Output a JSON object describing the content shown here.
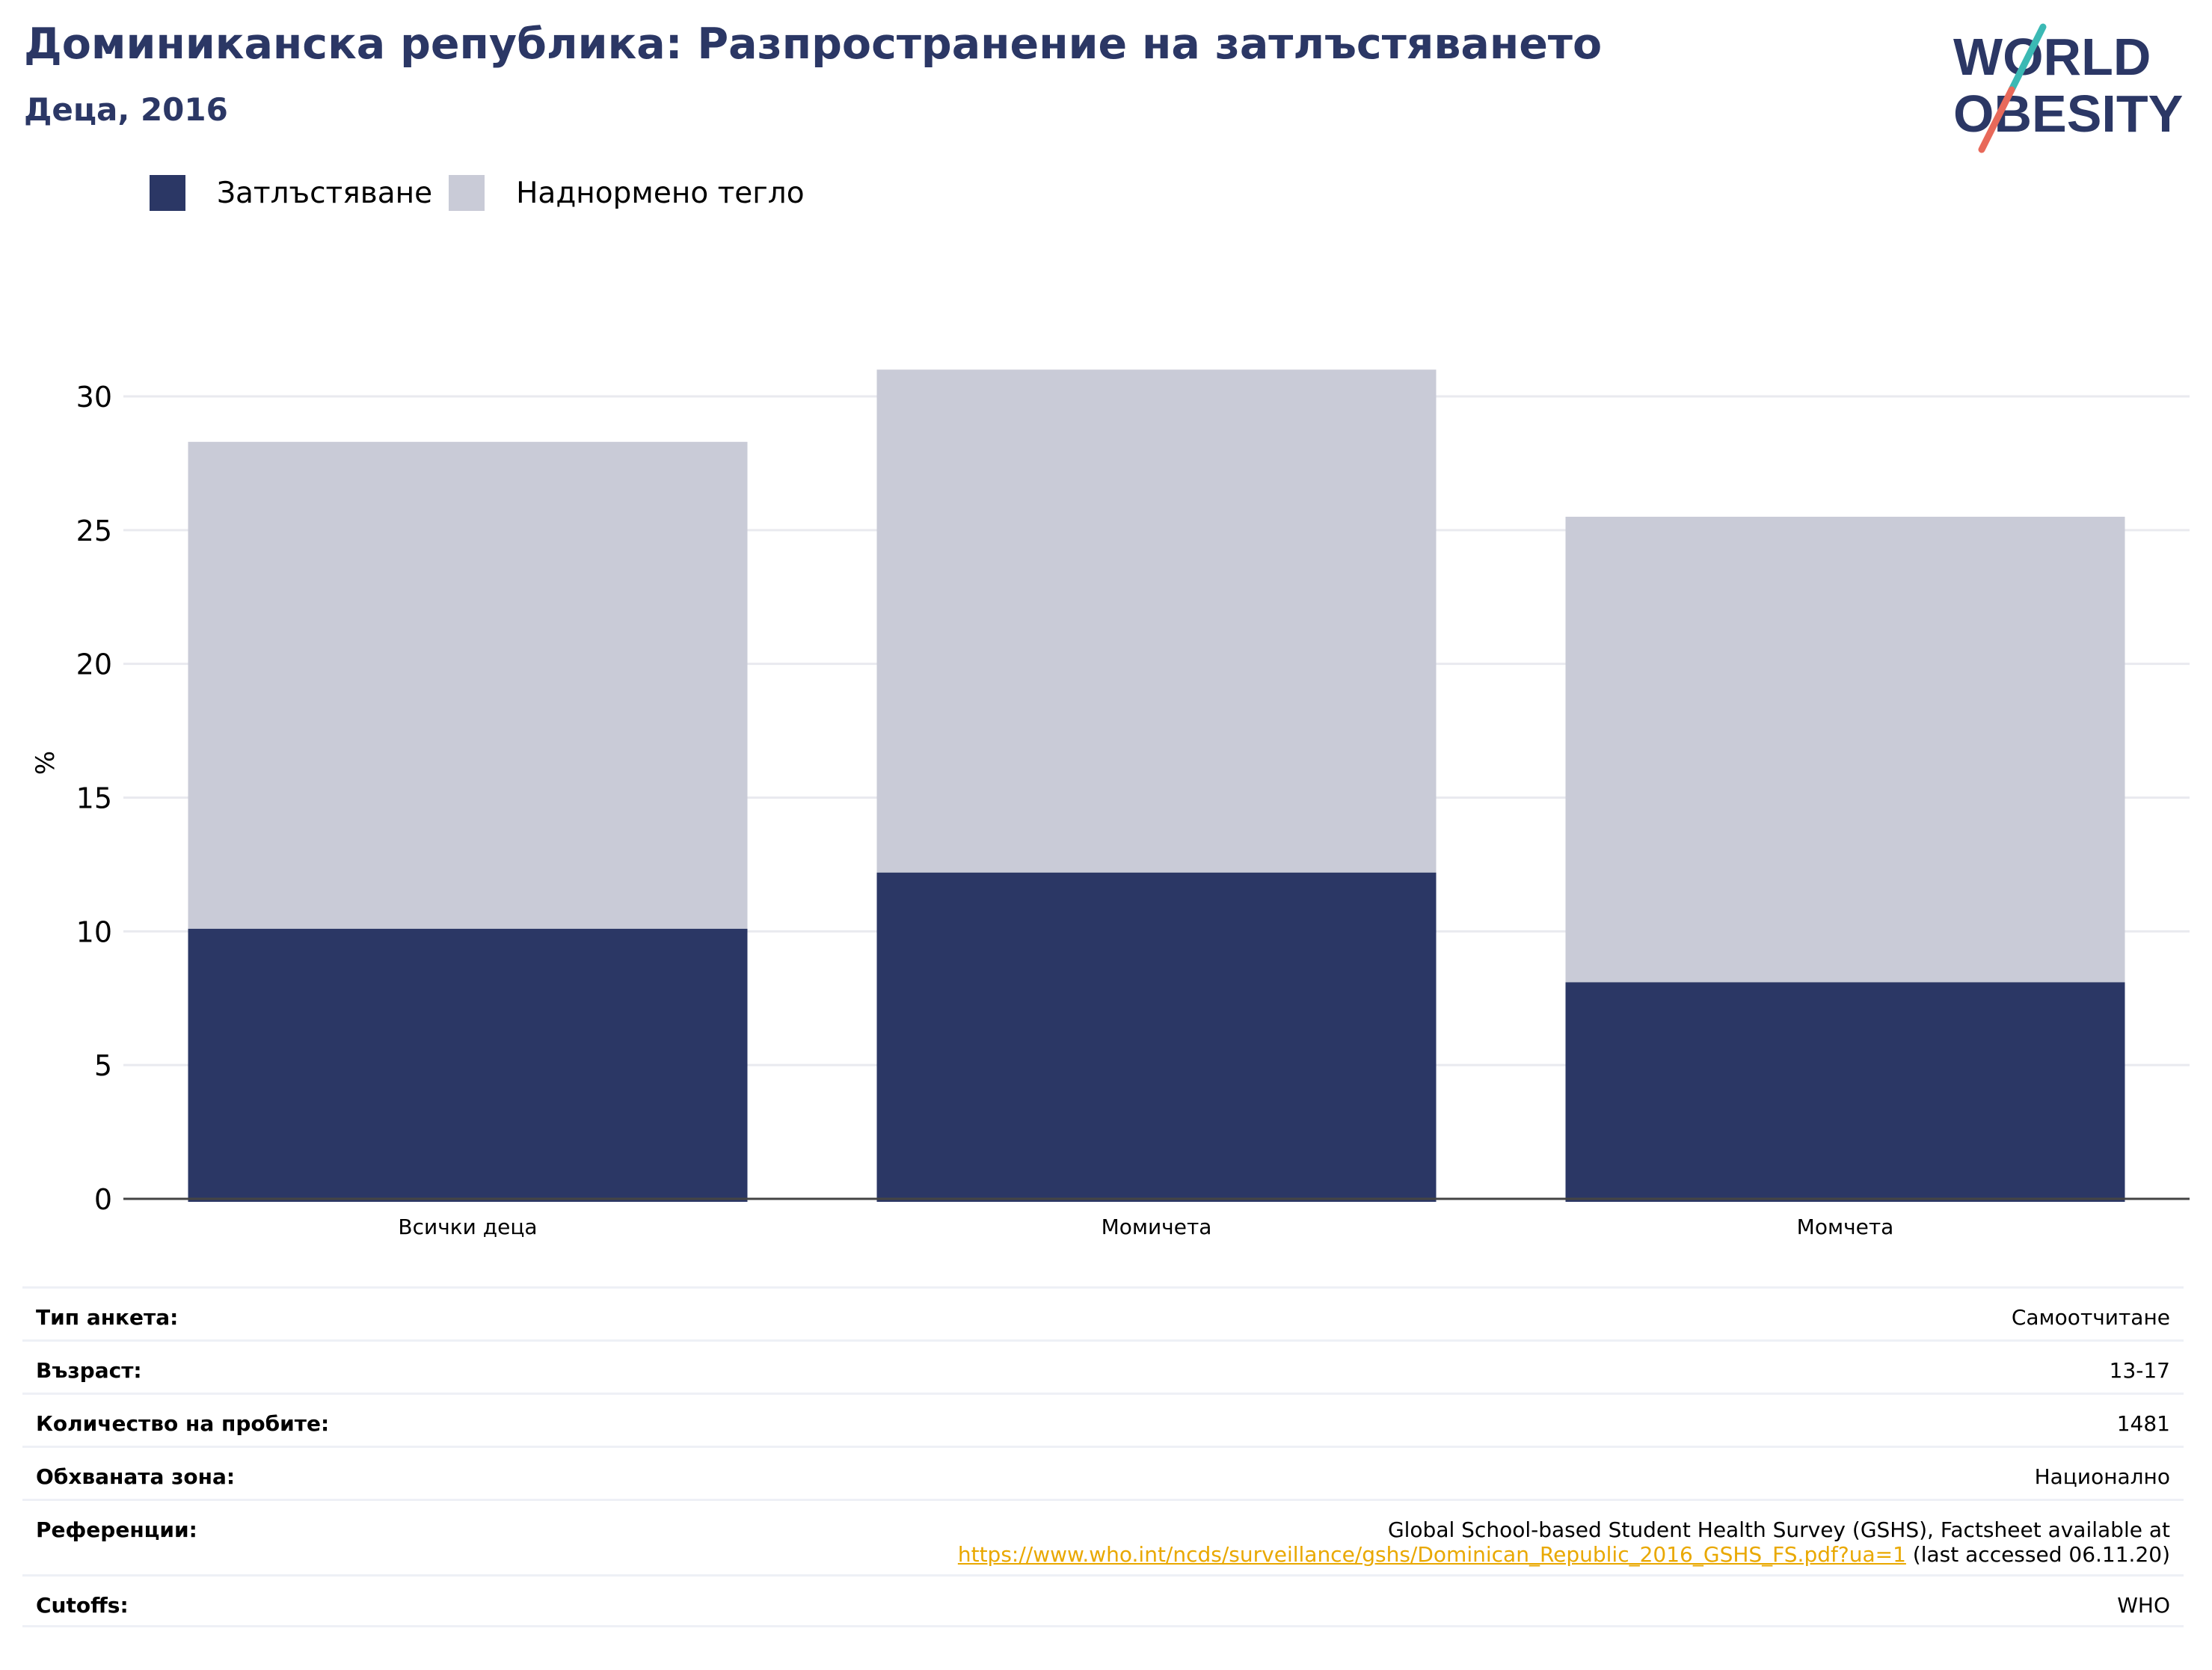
{
  "header": {
    "title": "Доминиканска република: Разпространение на затлъстяването",
    "subtitle": "Деца, 2016"
  },
  "logo": {
    "line1": "WORLD",
    "line2": "OBESITY"
  },
  "legend": [
    {
      "label": "Затлъстяване",
      "color": "#2b3765"
    },
    {
      "label": "Наднормено тегло",
      "color": "#c9cbd7"
    }
  ],
  "chart_data": {
    "type": "bar",
    "stacked": true,
    "categories": [
      "Всички деца",
      "Момичета",
      "Момчета"
    ],
    "series": [
      {
        "name": "Затлъстяване",
        "values": [
          10.1,
          12.2,
          8.1
        ],
        "color": "#2b3765"
      },
      {
        "name": "Наднормено тегло",
        "values": [
          18.2,
          18.8,
          17.4
        ],
        "color": "#c9cbd7"
      }
    ],
    "ylabel": "%",
    "xlabel": "",
    "ylim": [
      0,
      32
    ],
    "yticks": [
      0,
      5,
      10,
      15,
      20,
      25,
      30
    ],
    "grid": true,
    "legend_position": "top-left"
  },
  "info": [
    {
      "key": "Тип анкета:",
      "value": "Самоотчитане"
    },
    {
      "key": "Възраст:",
      "value": "13-17"
    },
    {
      "key": "Количество на пробите:",
      "value": "1481"
    },
    {
      "key": "Обхваната зона:",
      "value": "Национално"
    },
    {
      "key": "Референции:",
      "value": "Global School-based Student Health Survey (GSHS), Factsheet available at",
      "link": "https://www.who.int/ncds/surveillance/gshs/Dominican_Republic_2016_GSHS_FS.pdf?ua=1",
      "suffix": " (last accessed 06.11.20)"
    },
    {
      "key": "Cutoffs:",
      "value": "WHO"
    }
  ]
}
